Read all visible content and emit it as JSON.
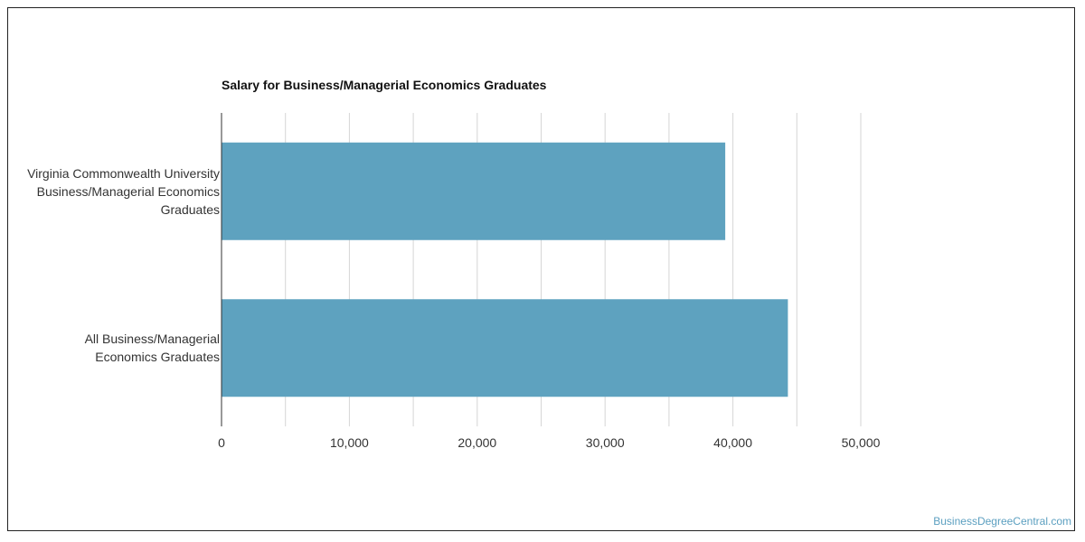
{
  "chart_data": {
    "type": "bar",
    "orientation": "horizontal",
    "title": "Salary for Business/Managerial Economics Graduates",
    "categories": [
      "Virginia Commonwealth University Business/Managerial Economics Graduates",
      "All Business/Managerial Economics Graduates"
    ],
    "category_lines": [
      [
        "Virginia Commonwealth University",
        "Business/Managerial Economics",
        "Graduates"
      ],
      [
        "All Business/Managerial",
        "Economics Graduates"
      ]
    ],
    "values": [
      39400,
      44300
    ],
    "xlim": [
      0,
      50000
    ],
    "xticks": [
      0,
      10000,
      20000,
      30000,
      40000,
      50000
    ],
    "xtick_labels": [
      "0",
      "10,000",
      "20,000",
      "30,000",
      "40,000",
      "50,000"
    ],
    "grid": true,
    "bar_color": "#5ea2bf",
    "grid_color": "#d6d6d6"
  },
  "footer": {
    "watermark": "BusinessDegreeCentral.com"
  }
}
